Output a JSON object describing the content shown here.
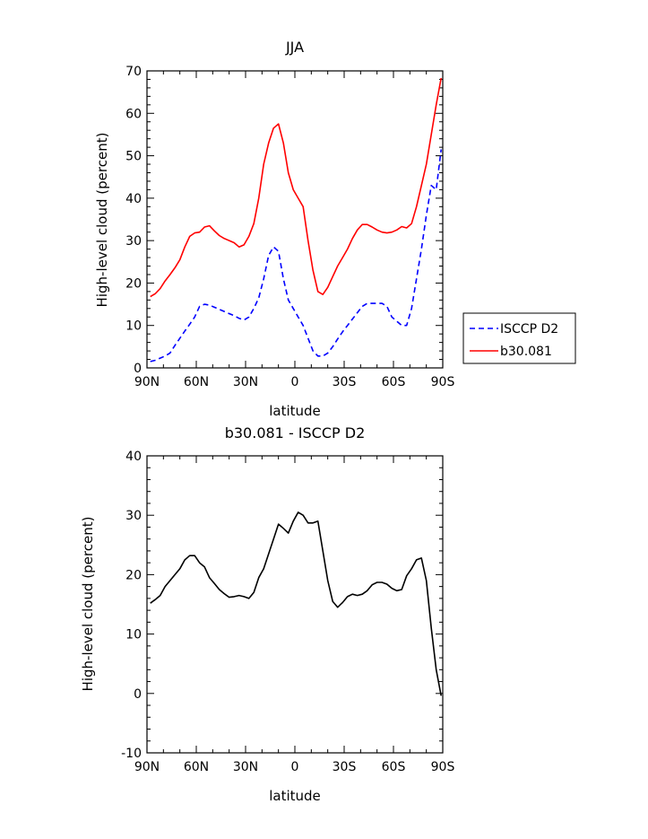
{
  "chart_data": [
    {
      "type": "line",
      "title": "JJA",
      "xlabel": "latitude",
      "ylabel": "High-level cloud (percent)",
      "xlim": [
        90,
        -90
      ],
      "ylim": [
        0,
        70
      ],
      "xticks": [
        90,
        60,
        30,
        0,
        -30,
        -60,
        -90
      ],
      "xticklabels": [
        "90N",
        "60N",
        "30N",
        "0",
        "30S",
        "60S",
        "90S"
      ],
      "yticks": [
        0,
        10,
        20,
        30,
        40,
        50,
        60,
        70
      ],
      "yticklabels": [
        "0",
        "10",
        "20",
        "30",
        "40",
        "50",
        "60",
        "70"
      ],
      "grid": false,
      "legend_position": "right",
      "series": [
        {
          "name": "ISCCP D2",
          "color": "#0000ff",
          "dash": "dashed",
          "x": [
            88,
            85,
            82,
            79,
            76,
            73,
            70,
            67,
            64,
            61,
            58,
            55,
            52,
            49,
            46,
            43,
            40,
            37,
            34,
            31,
            28,
            25,
            22,
            19,
            16,
            13,
            10,
            7,
            4,
            1,
            -2,
            -5,
            -8,
            -11,
            -14,
            -17,
            -20,
            -23,
            -26,
            -29,
            -32,
            -35,
            -38,
            -41,
            -44,
            -47,
            -50,
            -53,
            -56,
            -59,
            -62,
            -65,
            -68,
            -71,
            -74,
            -77,
            -80,
            -83,
            -86,
            -89
          ],
          "y": [
            1.5,
            1.8,
            2.3,
            2.8,
            3.5,
            5.3,
            7.0,
            8.7,
            10.3,
            12.0,
            14.5,
            15.0,
            14.8,
            14.3,
            13.8,
            13.3,
            12.8,
            12.3,
            11.7,
            11.3,
            12.0,
            14.0,
            16.5,
            21.0,
            26.5,
            28.5,
            27.5,
            21.0,
            16.0,
            14.0,
            12.0,
            10.0,
            7.0,
            4.0,
            2.8,
            2.8,
            3.5,
            5.0,
            6.8,
            8.5,
            10.0,
            11.5,
            13.0,
            14.5,
            15.2,
            15.2,
            15.2,
            15.2,
            14.5,
            12.0,
            11.0,
            10.0,
            10.0,
            14.0,
            21.0,
            28.0,
            36.0,
            43.0,
            42.0,
            51.5
          ]
        },
        {
          "name": "b30.081",
          "color": "#ff0000",
          "dash": "solid",
          "x": [
            88,
            85,
            82,
            79,
            76,
            73,
            70,
            67,
            64,
            61,
            58,
            55,
            52,
            49,
            46,
            43,
            40,
            37,
            34,
            31,
            28,
            25,
            22,
            19,
            16,
            13,
            10,
            7,
            4,
            1,
            -2,
            -5,
            -8,
            -11,
            -14,
            -17,
            -20,
            -23,
            -26,
            -29,
            -32,
            -35,
            -38,
            -41,
            -44,
            -47,
            -50,
            -53,
            -56,
            -59,
            -62,
            -65,
            -68,
            -71,
            -74,
            -77,
            -80,
            -83,
            -86,
            -89
          ],
          "y": [
            16.8,
            17.5,
            18.7,
            20.5,
            22.0,
            23.6,
            25.5,
            28.5,
            31.0,
            31.8,
            32.0,
            33.2,
            33.5,
            32.3,
            31.2,
            30.5,
            30.0,
            29.5,
            28.5,
            29.0,
            31.0,
            34.0,
            40.0,
            48.0,
            53.0,
            56.5,
            57.5,
            53.0,
            46.0,
            42.0,
            40.0,
            38.0,
            30.0,
            23.0,
            18.0,
            17.3,
            19.0,
            21.5,
            24.0,
            26.0,
            28.0,
            30.5,
            32.5,
            33.8,
            33.8,
            33.2,
            32.5,
            32.0,
            31.8,
            32.0,
            32.5,
            33.3,
            33.0,
            34.0,
            38.0,
            43.0,
            48.0,
            55.0,
            62.0,
            68.3
          ]
        }
      ]
    },
    {
      "type": "line",
      "title": "b30.081 - ISCCP D2",
      "xlabel": "latitude",
      "ylabel": "High-level cloud (percent)",
      "xlim": [
        90,
        -90
      ],
      "ylim": [
        -10,
        40
      ],
      "xticks": [
        90,
        60,
        30,
        0,
        -30,
        -60,
        -90
      ],
      "xticklabels": [
        "90N",
        "60N",
        "30N",
        "0",
        "30S",
        "60S",
        "90S"
      ],
      "yticks": [
        -10,
        0,
        10,
        20,
        30,
        40
      ],
      "yticklabels": [
        "-10",
        "0",
        "10",
        "20",
        "30",
        "40"
      ],
      "grid": false,
      "series": [
        {
          "color": "#000000",
          "dash": "solid",
          "x": [
            88,
            85,
            82,
            79,
            76,
            73,
            70,
            67,
            64,
            61,
            58,
            55,
            52,
            49,
            46,
            43,
            40,
            37,
            34,
            31,
            28,
            25,
            22,
            19,
            16,
            13,
            10,
            7,
            4,
            1,
            -2,
            -5,
            -8,
            -11,
            -14,
            -17,
            -20,
            -23,
            -26,
            -29,
            -32,
            -35,
            -38,
            -41,
            -44,
            -47,
            -50,
            -53,
            -56,
            -59,
            -62,
            -65,
            -68,
            -71,
            -74,
            -77,
            -80,
            -83,
            -86,
            -89
          ],
          "y": [
            15.2,
            15.8,
            16.5,
            18.0,
            19.0,
            20.0,
            21.0,
            22.5,
            23.2,
            23.2,
            22.0,
            21.3,
            19.5,
            18.5,
            17.5,
            16.8,
            16.2,
            16.3,
            16.5,
            16.3,
            16.0,
            17.0,
            19.5,
            21.0,
            23.5,
            26.0,
            28.5,
            27.8,
            27.0,
            29.0,
            30.5,
            30.0,
            28.7,
            28.7,
            29.0,
            24.0,
            19.0,
            15.5,
            14.5,
            15.3,
            16.3,
            16.7,
            16.5,
            16.7,
            17.3,
            18.3,
            18.7,
            18.7,
            18.4,
            17.7,
            17.3,
            17.5,
            19.8,
            21.0,
            22.5,
            22.8,
            19.0,
            11.0,
            4.0,
            -0.4
          ]
        }
      ]
    }
  ],
  "legend": {
    "entries": [
      {
        "label": "ISCCP D2",
        "color": "#0000ff",
        "dash": "dashed"
      },
      {
        "label": "b30.081",
        "color": "#ff0000",
        "dash": "solid"
      }
    ]
  }
}
